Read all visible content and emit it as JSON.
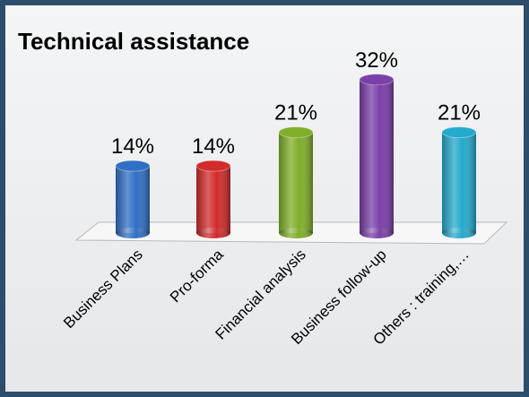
{
  "chart_data": {
    "type": "bar",
    "title": "Technical assistance",
    "categories": [
      "Business Plans",
      "Pro-forma",
      "Financial analysis",
      "Business follow-up",
      "Others : training,…"
    ],
    "values": [
      14,
      14,
      21,
      32,
      21
    ],
    "value_labels": [
      "14%",
      "14%",
      "21%",
      "32%",
      "21%"
    ],
    "colors": [
      "#2f6fc4",
      "#d12b2b",
      "#7fae2a",
      "#7a3fa8",
      "#25a9cc"
    ]
  }
}
